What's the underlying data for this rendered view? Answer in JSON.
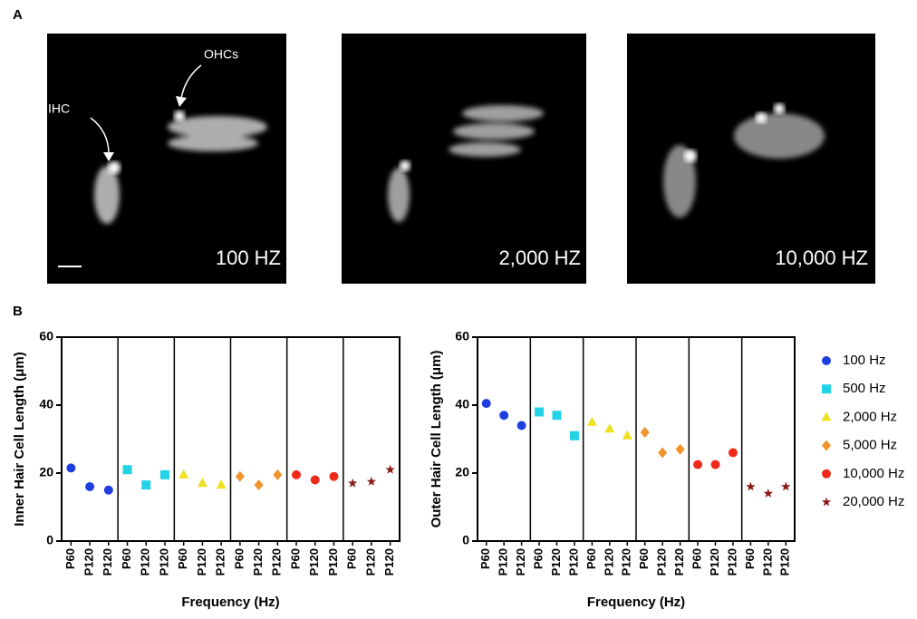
{
  "panel_a": {
    "label": "A",
    "images": [
      {
        "label": "100 HZ"
      },
      {
        "label": "2,000 HZ"
      },
      {
        "label": "10,000 HZ"
      }
    ],
    "annotations": [
      "IHC",
      "OHCs"
    ]
  },
  "panel_b": {
    "label": "B"
  },
  "chart_data": [
    {
      "type": "scatter",
      "ylabel": "Inner Hair Cell Length (μm)",
      "xlabel": "Frequency (Hz)",
      "categories": [
        "P60",
        "P120",
        "P120",
        "P60",
        "P120",
        "P120",
        "P60",
        "P120",
        "P120",
        "P60",
        "P120",
        "P120",
        "P60",
        "P120",
        "P120",
        "P60",
        "P120",
        "P120"
      ],
      "ylim": [
        0,
        60
      ],
      "yticks": [
        0,
        20,
        40,
        60
      ],
      "series": [
        {
          "color": "#1f3ee0",
          "marker": "circle",
          "values": [
            21.5,
            16,
            15,
            null,
            null,
            null,
            null,
            null,
            null,
            null,
            null,
            null,
            null,
            null,
            null,
            null,
            null,
            null
          ]
        },
        {
          "color": "#22d3e6",
          "marker": "square",
          "values": [
            null,
            null,
            null,
            21,
            16.5,
            19.5,
            null,
            null,
            null,
            null,
            null,
            null,
            null,
            null,
            null,
            null,
            null,
            null
          ]
        },
        {
          "color": "#f0e020",
          "marker": "triangle",
          "values": [
            null,
            null,
            null,
            null,
            null,
            null,
            19.5,
            17,
            16.5,
            null,
            null,
            null,
            null,
            null,
            null,
            null,
            null,
            null
          ]
        },
        {
          "color": "#f0932b",
          "marker": "diamond",
          "values": [
            null,
            null,
            null,
            null,
            null,
            null,
            null,
            null,
            null,
            19,
            16.5,
            19.5,
            null,
            null,
            null,
            null,
            null,
            null
          ]
        },
        {
          "color": "#f02a1a",
          "marker": "circle",
          "values": [
            null,
            null,
            null,
            null,
            null,
            null,
            null,
            null,
            null,
            null,
            null,
            null,
            19.5,
            18,
            19,
            null,
            null,
            null
          ]
        },
        {
          "color": "#8b1a1a",
          "marker": "star",
          "values": [
            null,
            null,
            null,
            null,
            null,
            null,
            null,
            null,
            null,
            null,
            null,
            null,
            null,
            null,
            null,
            17,
            17.5,
            21
          ]
        }
      ]
    },
    {
      "type": "scatter",
      "ylabel": "Outer Hair Cell Length (μm)",
      "xlabel": "Frequency (Hz)",
      "categories": [
        "P60",
        "P120",
        "P120",
        "P60",
        "P120",
        "P120",
        "P60",
        "P120",
        "P120",
        "P60",
        "P120",
        "P120",
        "P60",
        "P120",
        "P120",
        "P60",
        "P120",
        "P120"
      ],
      "ylim": [
        0,
        60
      ],
      "yticks": [
        0,
        20,
        40,
        60
      ],
      "series": [
        {
          "name": "100 Hz",
          "color": "#1f3ee0",
          "marker": "circle",
          "values": [
            40.5,
            37,
            34,
            null,
            null,
            null,
            null,
            null,
            null,
            null,
            null,
            null,
            null,
            null,
            null,
            null,
            null,
            null
          ]
        },
        {
          "name": "500 Hz",
          "color": "#22d3e6",
          "marker": "square",
          "values": [
            null,
            null,
            null,
            38,
            37,
            31,
            null,
            null,
            null,
            null,
            null,
            null,
            null,
            null,
            null,
            null,
            null,
            null
          ]
        },
        {
          "name": "2,000 Hz",
          "color": "#f0e020",
          "marker": "triangle",
          "values": [
            null,
            null,
            null,
            null,
            null,
            null,
            35,
            33,
            31,
            null,
            null,
            null,
            null,
            null,
            null,
            null,
            null,
            null
          ]
        },
        {
          "name": "5,000 Hz",
          "color": "#f0932b",
          "marker": "diamond",
          "values": [
            null,
            null,
            null,
            null,
            null,
            null,
            null,
            null,
            null,
            32,
            26,
            27,
            null,
            null,
            null,
            null,
            null,
            null
          ]
        },
        {
          "name": "10,000 Hz",
          "color": "#f02a1a",
          "marker": "circle",
          "values": [
            null,
            null,
            null,
            null,
            null,
            null,
            null,
            null,
            null,
            null,
            null,
            null,
            22.5,
            22.5,
            26,
            null,
            null,
            null
          ]
        },
        {
          "name": "20,000 Hz",
          "color": "#8b1a1a",
          "marker": "star",
          "values": [
            null,
            null,
            null,
            null,
            null,
            null,
            null,
            null,
            null,
            null,
            null,
            null,
            null,
            null,
            null,
            16,
            14,
            16
          ]
        }
      ]
    }
  ]
}
